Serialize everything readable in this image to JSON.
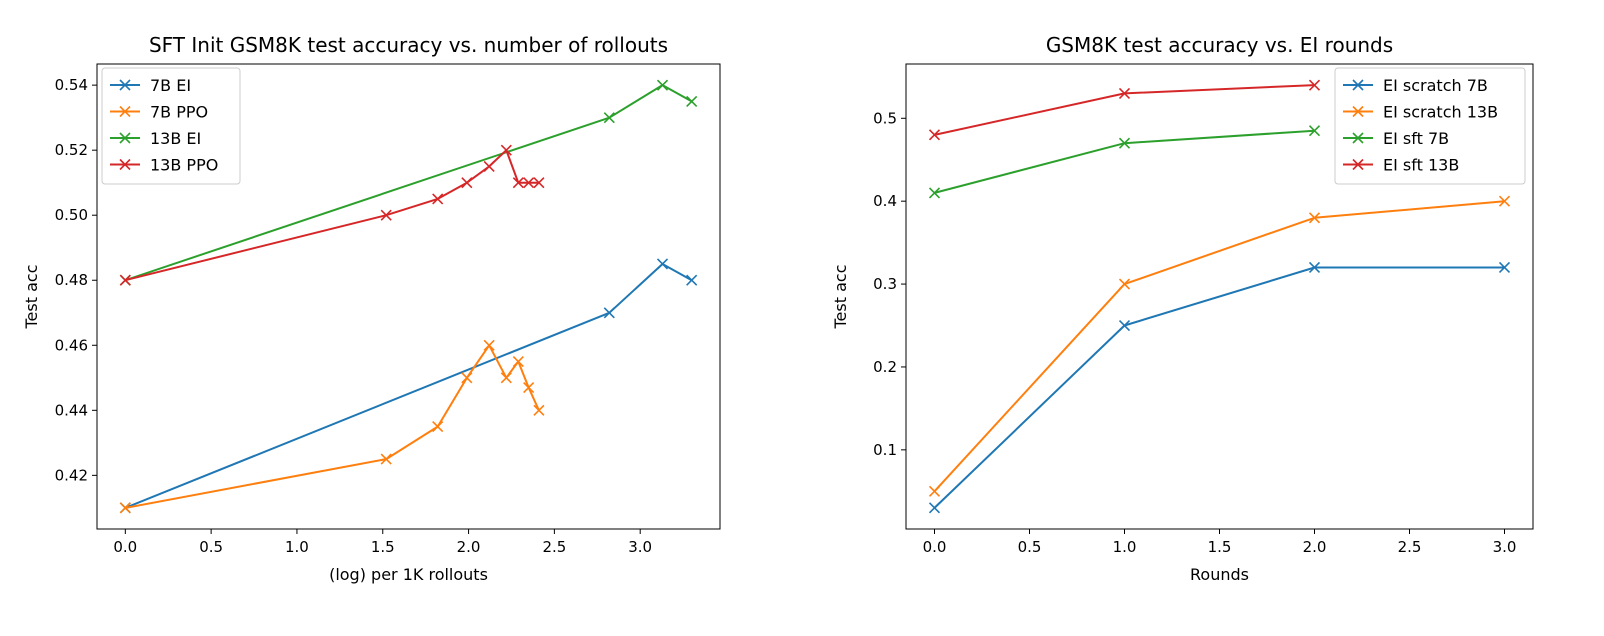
{
  "chart_data": [
    {
      "type": "line",
      "title": "SFT Init GSM8K test accuracy vs. number of rollouts",
      "xlabel": "(log) per 1K rollouts",
      "ylabel": "Test acc",
      "xlim": [
        -0.165,
        3.465
      ],
      "ylim": [
        0.4035,
        0.5465
      ],
      "xticks": [
        0.0,
        0.5,
        1.0,
        1.5,
        2.0,
        2.5,
        3.0
      ],
      "xtick_labels": [
        "0.0",
        "0.5",
        "1.0",
        "1.5",
        "2.0",
        "2.5",
        "3.0"
      ],
      "yticks": [
        0.42,
        0.44,
        0.46,
        0.48,
        0.5,
        0.52,
        0.54
      ],
      "ytick_labels": [
        "0.42",
        "0.44",
        "0.46",
        "0.48",
        "0.50",
        "0.52",
        "0.54"
      ],
      "grid": false,
      "legend_position": "top-left",
      "series": [
        {
          "name": "7B EI",
          "color": "#1f77b4",
          "x": [
            0.0,
            2.82,
            3.13,
            3.3
          ],
          "y": [
            0.41,
            0.47,
            0.485,
            0.48
          ]
        },
        {
          "name": "7B PPO",
          "color": "#ff7f0e",
          "x": [
            0.0,
            1.52,
            1.82,
            1.99,
            2.12,
            2.22,
            2.29,
            2.35,
            2.41
          ],
          "y": [
            0.41,
            0.425,
            0.435,
            0.45,
            0.46,
            0.45,
            0.455,
            0.447,
            0.44
          ]
        },
        {
          "name": "13B EI",
          "color": "#2ca02c",
          "x": [
            0.0,
            2.82,
            3.13,
            3.3
          ],
          "y": [
            0.48,
            0.53,
            0.54,
            0.535
          ]
        },
        {
          "name": "13B PPO",
          "color": "#d62728",
          "x": [
            0.0,
            1.52,
            1.82,
            1.99,
            2.12,
            2.22,
            2.29,
            2.35,
            2.41
          ],
          "y": [
            0.48,
            0.5,
            0.505,
            0.51,
            0.515,
            0.52,
            0.51,
            0.51,
            0.51
          ]
        }
      ]
    },
    {
      "type": "line",
      "title": "GSM8K test accuracy vs. EI rounds",
      "xlabel": "Rounds",
      "ylabel": "Test acc",
      "xlim": [
        -0.15,
        3.15
      ],
      "ylim": [
        0.0045,
        0.5655
      ],
      "xticks": [
        0.0,
        0.5,
        1.0,
        1.5,
        2.0,
        2.5,
        3.0
      ],
      "xtick_labels": [
        "0.0",
        "0.5",
        "1.0",
        "1.5",
        "2.0",
        "2.5",
        "3.0"
      ],
      "yticks": [
        0.1,
        0.2,
        0.3,
        0.4,
        0.5
      ],
      "ytick_labels": [
        "0.1",
        "0.2",
        "0.3",
        "0.4",
        "0.5"
      ],
      "grid": false,
      "legend_position": "top-right",
      "series": [
        {
          "name": "EI scratch 7B",
          "color": "#1f77b4",
          "x": [
            0,
            1,
            2,
            3
          ],
          "y": [
            0.03,
            0.25,
            0.32,
            0.32
          ]
        },
        {
          "name": "EI scratch 13B",
          "color": "#ff7f0e",
          "x": [
            0,
            1,
            2,
            3
          ],
          "y": [
            0.05,
            0.3,
            0.38,
            0.4
          ]
        },
        {
          "name": "EI sft 7B",
          "color": "#2ca02c",
          "x": [
            0,
            1,
            2
          ],
          "y": [
            0.41,
            0.47,
            0.485
          ]
        },
        {
          "name": "EI sft 13B",
          "color": "#d62728",
          "x": [
            0,
            1,
            2
          ],
          "y": [
            0.48,
            0.53,
            0.54
          ]
        }
      ]
    }
  ]
}
